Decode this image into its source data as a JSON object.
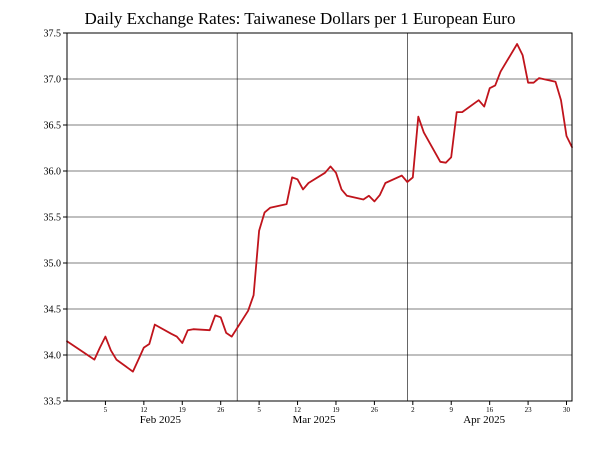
{
  "chart_data": {
    "type": "line",
    "title": "Daily Exchange Rates: Taiwanese Dollars per 1 European Euro",
    "xlabel": "",
    "ylabel": "",
    "ylim": [
      33.5,
      37.5
    ],
    "yticks": [
      "33.5",
      "34.0",
      "34.5",
      "35.0",
      "35.5",
      "36.0",
      "36.5",
      "37.0",
      "37.5"
    ],
    "xlim": [
      "2025-01-29",
      "2025-05-01"
    ],
    "x_day_ticks": [
      {
        "date": "2025-02-05",
        "label": "5"
      },
      {
        "date": "2025-02-12",
        "label": "12"
      },
      {
        "date": "2025-02-19",
        "label": "19"
      },
      {
        "date": "2025-02-26",
        "label": "26"
      },
      {
        "date": "2025-03-05",
        "label": "5"
      },
      {
        "date": "2025-03-12",
        "label": "12"
      },
      {
        "date": "2025-03-19",
        "label": "19"
      },
      {
        "date": "2025-03-26",
        "label": "26"
      },
      {
        "date": "2025-04-02",
        "label": "2"
      },
      {
        "date": "2025-04-09",
        "label": "9"
      },
      {
        "date": "2025-04-16",
        "label": "16"
      },
      {
        "date": "2025-04-23",
        "label": "23"
      },
      {
        "date": "2025-04-30",
        "label": "30"
      }
    ],
    "x_month_labels": [
      {
        "date": "2025-02-15",
        "label": "Feb 2025"
      },
      {
        "date": "2025-03-15",
        "label": "Mar 2025"
      },
      {
        "date": "2025-04-15",
        "label": "Apr 2025"
      }
    ],
    "month_gridlines": [
      "2025-03-01",
      "2025-04-01"
    ],
    "grid": true,
    "line_color": "#c0141c",
    "series": [
      {
        "x": [
          "2025-01-29",
          "2025-02-03",
          "2025-02-04",
          "2025-02-05",
          "2025-02-06",
          "2025-02-07",
          "2025-02-10",
          "2025-02-11",
          "2025-02-12",
          "2025-02-13",
          "2025-02-14",
          "2025-02-17",
          "2025-02-18",
          "2025-02-19",
          "2025-02-20",
          "2025-02-21",
          "2025-02-24",
          "2025-02-25",
          "2025-02-26",
          "2025-02-27",
          "2025-02-28",
          "2025-03-03",
          "2025-03-04",
          "2025-03-05",
          "2025-03-06",
          "2025-03-07",
          "2025-03-10",
          "2025-03-11",
          "2025-03-12",
          "2025-03-13",
          "2025-03-14",
          "2025-03-17",
          "2025-03-18",
          "2025-03-19",
          "2025-03-20",
          "2025-03-21",
          "2025-03-24",
          "2025-03-25",
          "2025-03-26",
          "2025-03-27",
          "2025-03-28",
          "2025-03-31",
          "2025-04-01",
          "2025-04-02",
          "2025-04-03",
          "2025-04-04",
          "2025-04-07",
          "2025-04-08",
          "2025-04-09",
          "2025-04-10",
          "2025-04-11",
          "2025-04-14",
          "2025-04-15",
          "2025-04-16",
          "2025-04-17",
          "2025-04-18",
          "2025-04-21",
          "2025-04-22",
          "2025-04-23",
          "2025-04-24",
          "2025-04-25",
          "2025-04-28",
          "2025-04-29",
          "2025-04-30",
          "2025-05-01"
        ],
        "values": [
          34.15,
          33.95,
          34.08,
          34.2,
          34.05,
          33.95,
          33.82,
          33.95,
          34.08,
          34.12,
          34.33,
          34.23,
          34.2,
          34.13,
          34.27,
          34.28,
          34.27,
          34.43,
          34.41,
          34.24,
          34.2,
          34.48,
          34.65,
          35.35,
          35.55,
          35.6,
          35.64,
          35.93,
          35.91,
          35.8,
          35.87,
          35.98,
          36.05,
          35.98,
          35.8,
          35.73,
          35.69,
          35.73,
          35.67,
          35.74,
          35.87,
          35.95,
          35.88,
          35.93,
          36.59,
          36.42,
          36.1,
          36.09,
          36.15,
          36.64,
          36.64,
          36.77,
          36.7,
          36.9,
          36.93,
          37.08,
          37.38,
          37.26,
          36.96,
          36.96,
          37.01,
          36.97,
          36.77,
          36.38,
          36.26
        ]
      }
    ]
  }
}
